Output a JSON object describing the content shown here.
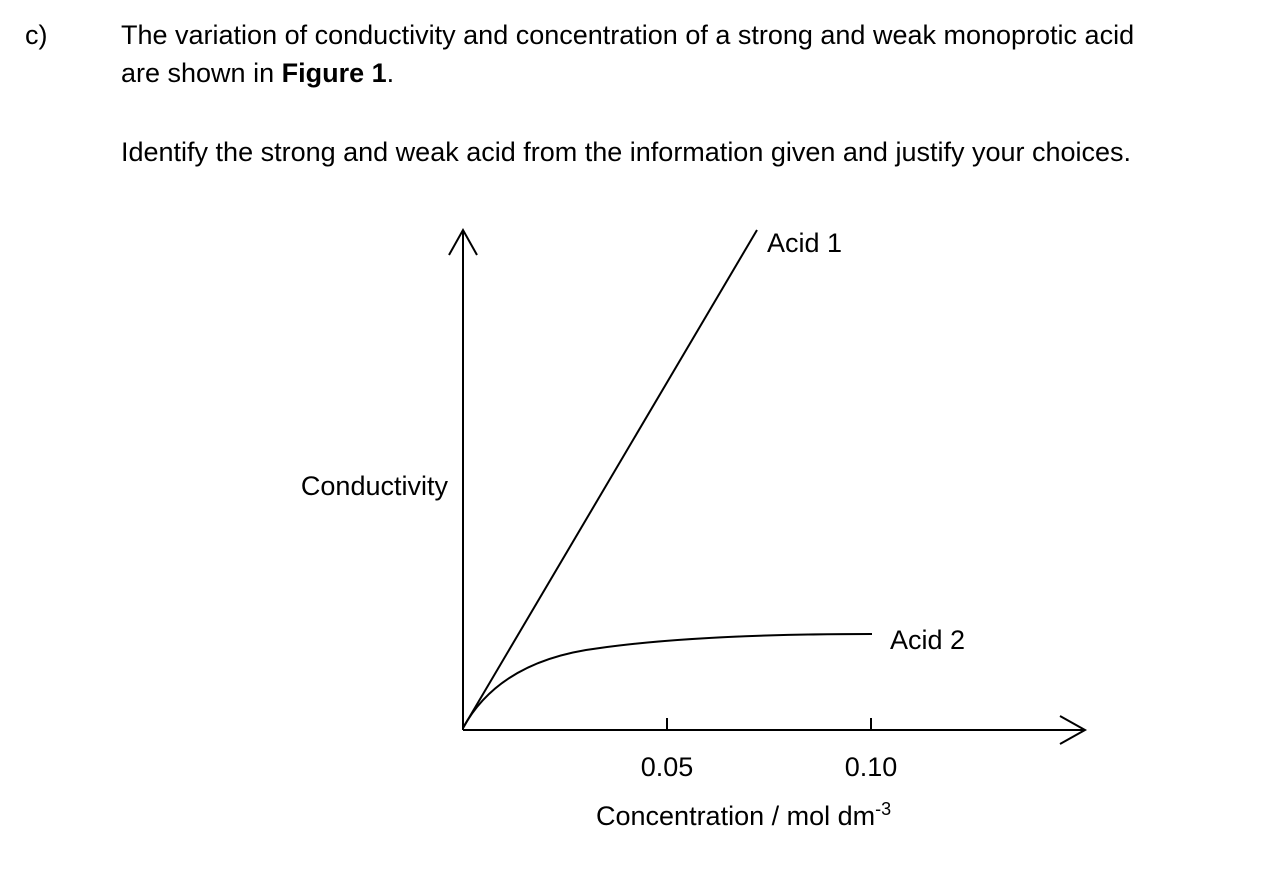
{
  "question": {
    "label": "c)",
    "intro": [
      "The variation of conductivity and concentration of a strong and weak monoprotic acid",
      "are shown in ",
      "Figure 1",
      "."
    ],
    "instruction": "Identify the strong and weak acid from the information given and justify your choices."
  },
  "figure": {
    "y_label": "Conductivity",
    "x_label": "Concentration / mol dm",
    "x_label_superscript": "-3",
    "xlim": [
      0,
      0.15
    ],
    "xticks": [
      0.05,
      {
        "value": 0.1,
        "label": "0.10"
      }
    ],
    "curve_labels": [
      "Acid 1",
      "Acid 2"
    ]
  }
}
